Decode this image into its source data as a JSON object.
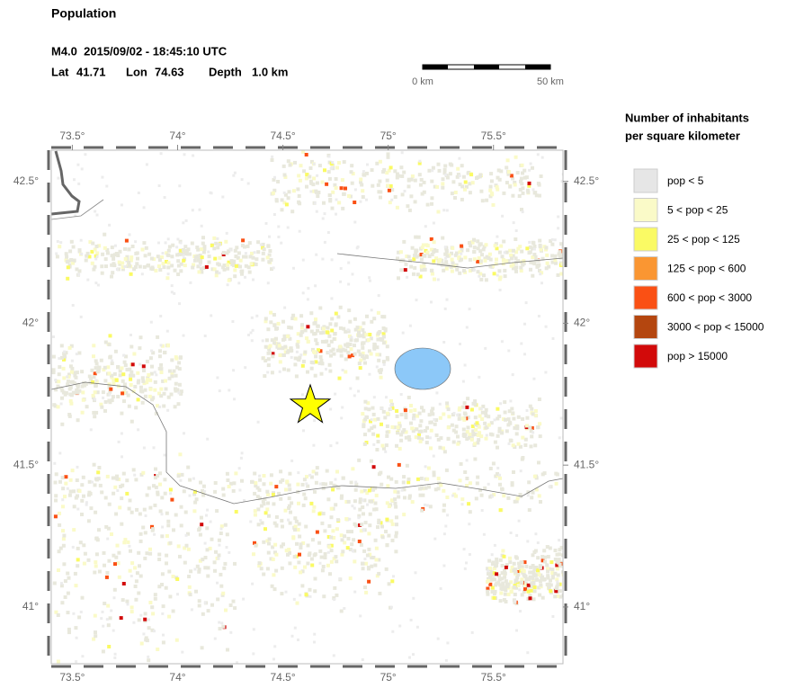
{
  "header": {
    "title": "Population",
    "event": "M4.0  2015/09/02 - 18:45:10 UTC",
    "lat_label": "Lat",
    "lat": 41.71,
    "lon_label": "Lon",
    "lon": 74.63,
    "depth_label": "Depth",
    "depth": "1.0 km"
  },
  "scale_bar": {
    "start": "0 km",
    "end": "50 km"
  },
  "map": {
    "xlim": [
      73.4,
      75.83
    ],
    "ylim": [
      40.8,
      42.61
    ],
    "xticks": [
      {
        "value": 73.5,
        "label": "73.5°"
      },
      {
        "value": 74,
        "label": "74°"
      },
      {
        "value": 74.5,
        "label": "74.5°"
      },
      {
        "value": 75,
        "label": "75°"
      },
      {
        "value": 75.5,
        "label": "75.5°"
      }
    ],
    "yticks": [
      {
        "value": 41,
        "label": "41°"
      },
      {
        "value": 41.5,
        "label": "41.5°"
      },
      {
        "value": 42,
        "label": "42°"
      },
      {
        "value": 42.5,
        "label": "42.5°"
      }
    ]
  },
  "legend": {
    "title": [
      "Number of inhabitants",
      "per square kilometer"
    ],
    "items": [
      {
        "label": "pop < 5",
        "color": "#e6e6e6"
      },
      {
        "label": "5 < pop < 25",
        "color": "#fafac8"
      },
      {
        "label": "25 < pop < 125",
        "color": "#fafa64"
      },
      {
        "label": "125 < pop < 600",
        "color": "#fa9632"
      },
      {
        "label": "600 < pop < 3000",
        "color": "#fa5014"
      },
      {
        "label": "3000 < pop < 15000",
        "color": "#b4460f"
      },
      {
        "label": "pop > 15000",
        "color": "#d20a0a"
      }
    ]
  }
}
